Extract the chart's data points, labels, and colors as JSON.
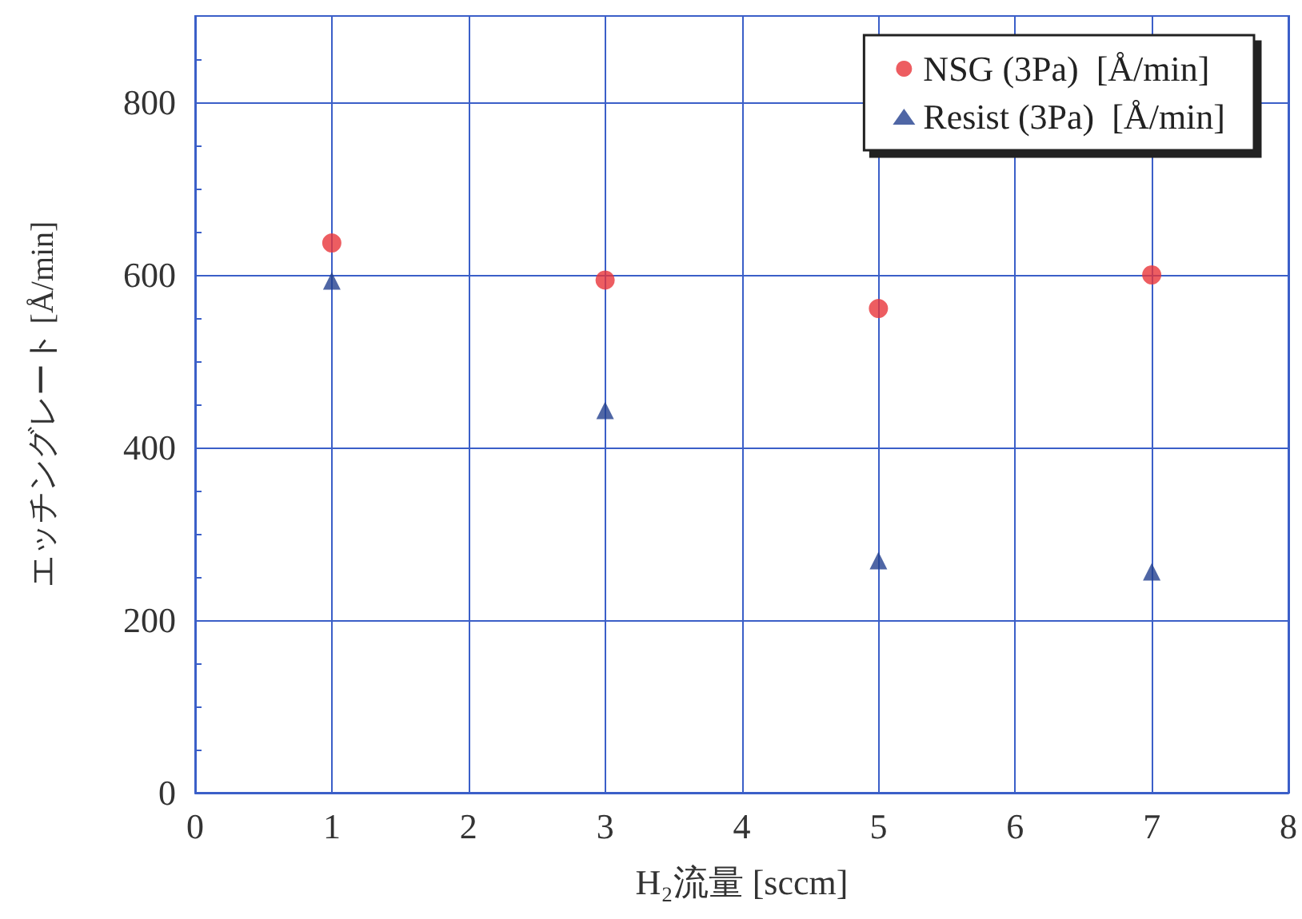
{
  "chart_data": {
    "type": "scatter",
    "xlabel": "H₂流量 [sccm]",
    "ylabel": "エッチングレート [Å/min]",
    "xlim": [
      0,
      8
    ],
    "xticks": [
      0,
      1,
      2,
      3,
      4,
      5,
      6,
      7,
      8
    ],
    "ylim": [
      0,
      900
    ],
    "yticks": [
      0,
      200,
      400,
      600,
      800
    ],
    "grid": true,
    "legend": "top right",
    "series": [
      {
        "name": "NSG (3Pa)  [Å/min]",
        "color": "#e8343a",
        "marker": "circle",
        "x": [
          1,
          3,
          5,
          7
        ],
        "values": [
          637,
          594,
          561,
          600
        ]
      },
      {
        "name": "Resist (3Pa)  [Å/min]",
        "color": "#23408e",
        "marker": "triangle",
        "x": [
          1,
          3,
          5,
          7
        ],
        "values": [
          593,
          443,
          269,
          256
        ]
      }
    ]
  }
}
